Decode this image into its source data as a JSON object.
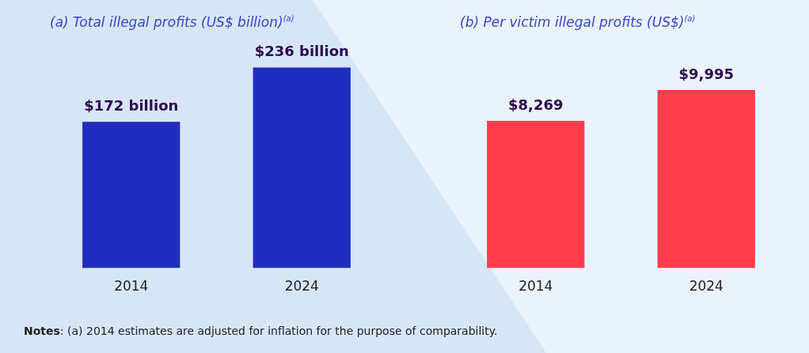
{
  "chart_data": [
    {
      "type": "bar",
      "title": "(a) Total illegal profits (US$ billion)$^{(a)}$",
      "categories": [
        "2014",
        "2024"
      ],
      "values": [
        172,
        236
      ],
      "value_labels": [
        "$172 billion",
        "$236 billion"
      ],
      "color": "#1f2dbf",
      "tick_labels": "x",
      "annotations": [
        "Notes: (a) 2014 estimates are adjusted for inflation for the purpose of comparability."
      ]
    },
    {
      "type": "bar",
      "title": "(b) Per victim illegal profits (US$)$^{(a)}$",
      "categories": [
        "2014",
        "2024"
      ],
      "values": [
        8269,
        9995
      ],
      "value_labels": [
        "$8,269",
        "$9,995"
      ],
      "color": "#ff3d4d",
      "tick_labels": "x"
    }
  ]
}
